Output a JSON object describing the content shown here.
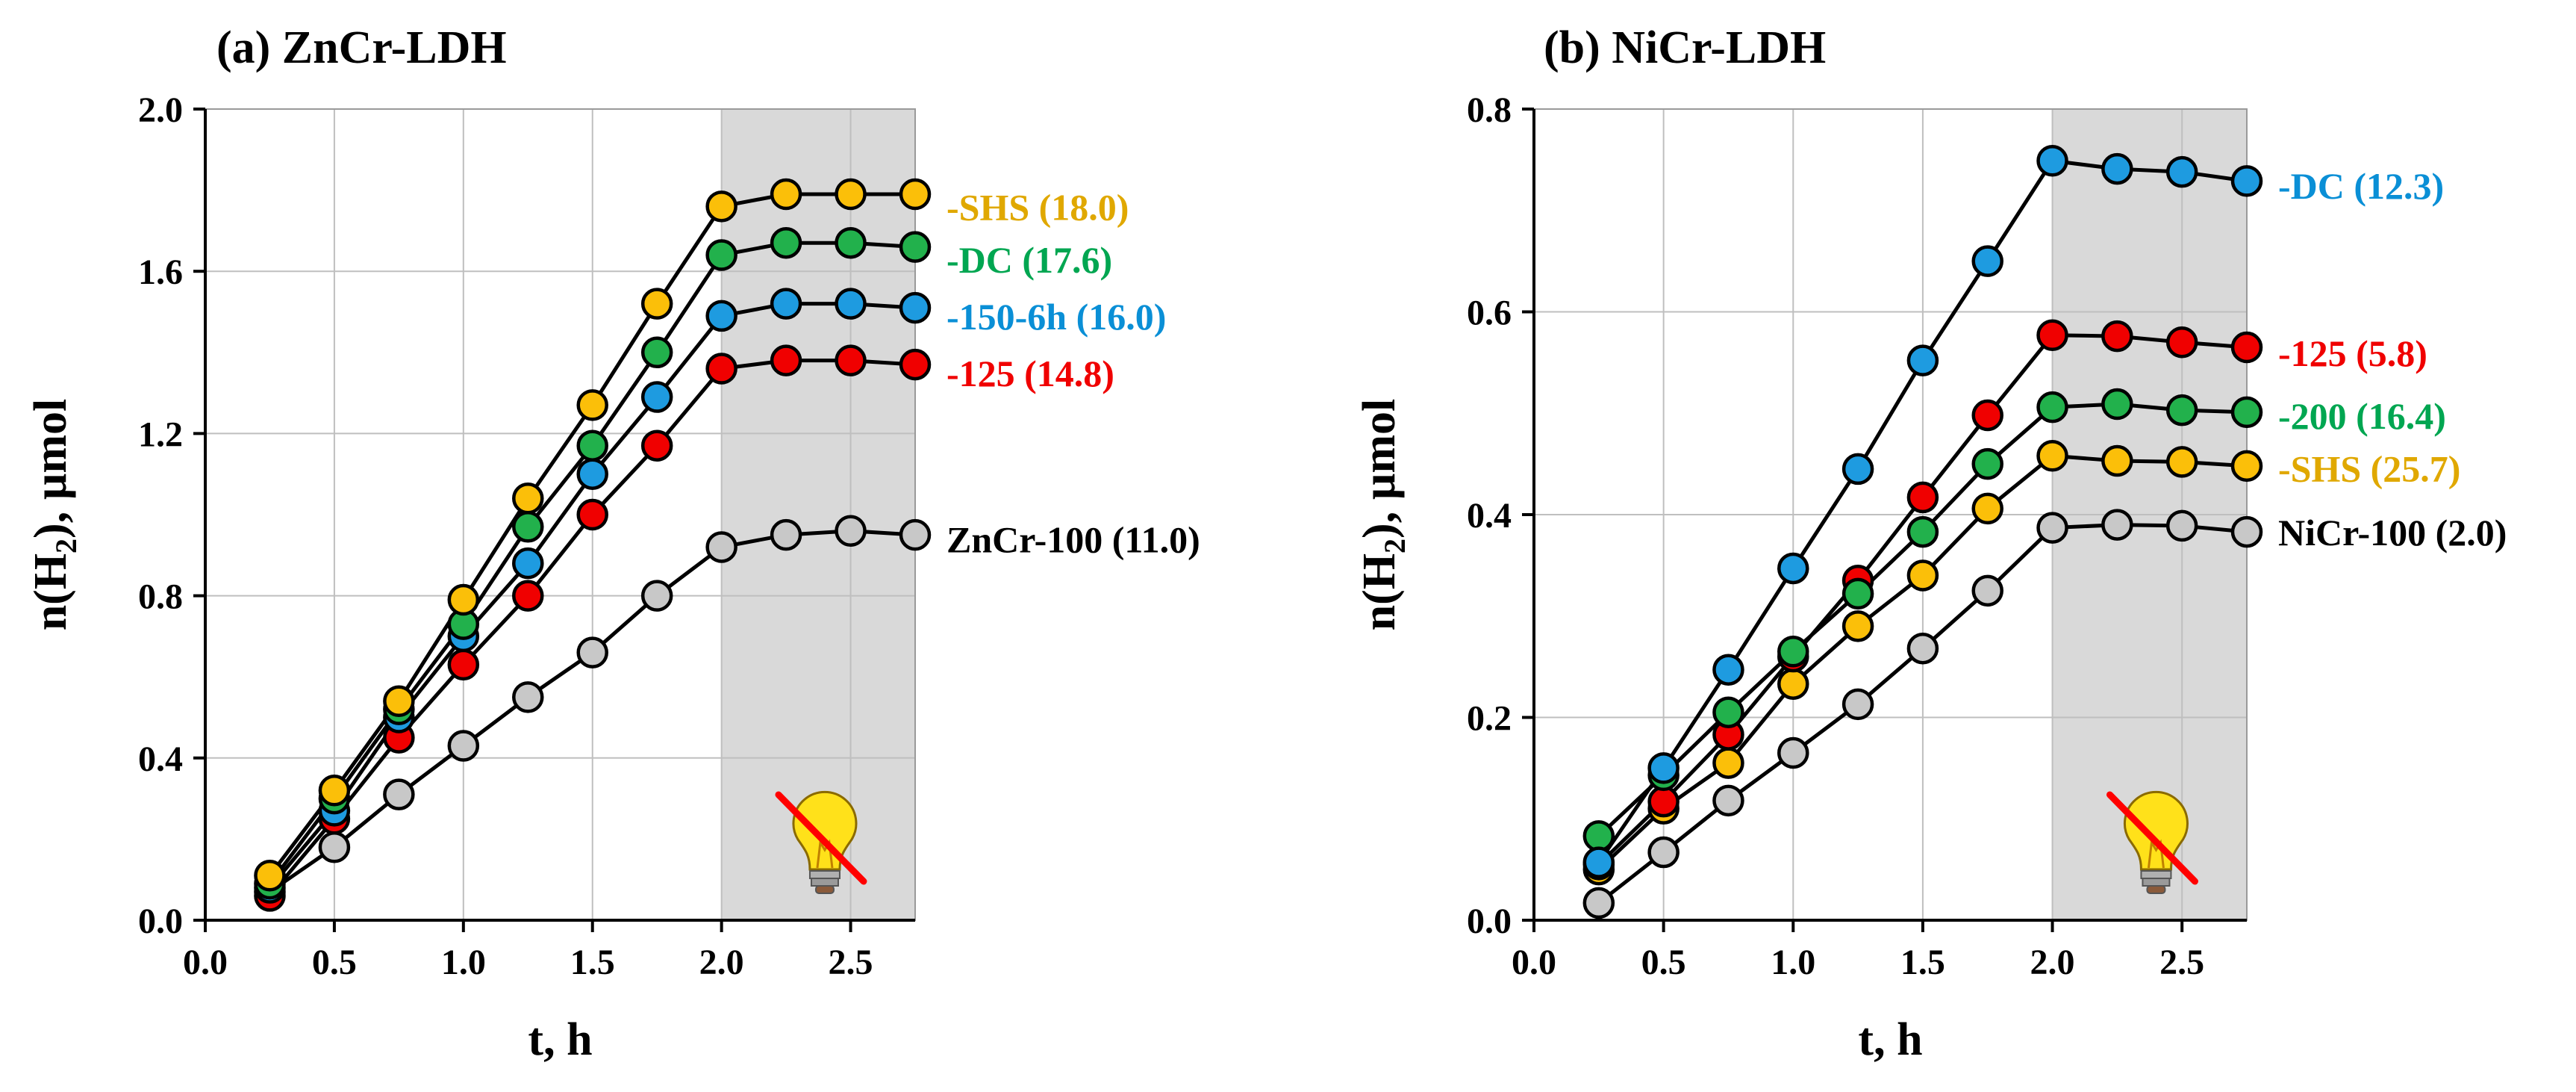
{
  "colors": {
    "SHS": "#FBBF09",
    "DC": "#22B14C",
    "150-6h": "#1E9BE0",
    "125": "#F00000",
    "200": "#22B14C",
    "base": "#C8C8C8",
    "label_SHS": "#E0A800",
    "label_DC_green": "#00A651",
    "label_blue": "#0A8FD6",
    "label_red": "#F00000",
    "label_black": "#000000",
    "dark_shade": "#D9D9D9"
  },
  "chart_data": [
    {
      "type": "line",
      "title": "(a) ZnCr-LDH",
      "xlabel": "t, h",
      "ylabel_main": "n(H",
      "ylabel_sub": "2",
      "ylabel_tail": "), µmol",
      "xlim": [
        0,
        2.75
      ],
      "ylim": [
        0,
        2.0
      ],
      "xticks": [
        0.0,
        0.5,
        1.0,
        1.5,
        2.0,
        2.5
      ],
      "xtick_labels": [
        "0.0",
        "0.5",
        "1.0",
        "1.5",
        "2.0",
        "2.5"
      ],
      "yticks": [
        0.0,
        0.4,
        0.8,
        1.2,
        1.6,
        2.0
      ],
      "ytick_labels": [
        "0.0",
        "0.4",
        "0.8",
        "1.2",
        "1.6",
        "2.0"
      ],
      "dark_region": [
        2.0,
        2.75
      ],
      "grid": true,
      "x": [
        0.25,
        0.5,
        0.75,
        1.0,
        1.25,
        1.5,
        1.75,
        2.0,
        2.25,
        2.5,
        2.75
      ],
      "series": [
        {
          "key": "base",
          "name": "ZnCr-100",
          "label": "ZnCr-100 (11.0)",
          "values": [
            0.07,
            0.18,
            0.31,
            0.43,
            0.55,
            0.66,
            0.8,
            0.92,
            0.95,
            0.96,
            0.95
          ]
        },
        {
          "key": "125",
          "name": "-125",
          "label": "-125 (14.8)",
          "values": [
            0.06,
            0.25,
            0.45,
            0.63,
            0.8,
            1.0,
            1.17,
            1.36,
            1.38,
            1.38,
            1.37
          ]
        },
        {
          "key": "150-6h",
          "name": "-150-6h",
          "label": "-150-6h (16.0)",
          "values": [
            0.08,
            0.27,
            0.5,
            0.7,
            0.88,
            1.1,
            1.29,
            1.49,
            1.52,
            1.52,
            1.51
          ]
        },
        {
          "key": "DC",
          "name": "-DC",
          "label": "-DC (17.6)",
          "values": [
            0.09,
            0.3,
            0.52,
            0.73,
            0.97,
            1.17,
            1.4,
            1.64,
            1.67,
            1.67,
            1.66
          ]
        },
        {
          "key": "SHS",
          "name": "-SHS",
          "label": "-SHS (18.0)",
          "values": [
            0.11,
            0.32,
            0.54,
            0.79,
            1.04,
            1.27,
            1.52,
            1.76,
            1.79,
            1.79,
            1.79
          ]
        }
      ],
      "end_labels": [
        {
          "text": "-SHS (18.0)",
          "color_key": "label_SHS",
          "y": 1.76
        },
        {
          "text": "-DC (17.6)",
          "color_key": "label_DC_green",
          "y": 1.63
        },
        {
          "text": "-150-6h (16.0)",
          "color_key": "label_blue",
          "y": 1.49
        },
        {
          "text": "-125 (14.8)",
          "color_key": "label_red",
          "y": 1.35
        },
        {
          "text": "ZnCr-100 (11.0)",
          "color_key": "label_black",
          "y": 0.94
        }
      ]
    },
    {
      "type": "line",
      "title": "(b) NiCr-LDH",
      "xlabel": "t, h",
      "ylabel_main": "n(H",
      "ylabel_sub": "2",
      "ylabel_tail": "), µmol",
      "xlim": [
        0,
        2.75
      ],
      "ylim": [
        0,
        0.8
      ],
      "xticks": [
        0.0,
        0.5,
        1.0,
        1.5,
        2.0,
        2.5
      ],
      "xtick_labels": [
        "0.0",
        "0.5",
        "1.0",
        "1.5",
        "2.0",
        "2.5"
      ],
      "yticks": [
        0.0,
        0.2,
        0.4,
        0.6,
        0.8
      ],
      "ytick_labels": [
        "0.0",
        "0.2",
        "0.4",
        "0.6",
        "0.8"
      ],
      "dark_region": [
        2.0,
        2.75
      ],
      "grid": true,
      "x": [
        0.25,
        0.5,
        0.75,
        1.0,
        1.25,
        1.5,
        1.75,
        2.0,
        2.25,
        2.5,
        2.75
      ],
      "series": [
        {
          "key": "base",
          "name": "NiCr-100",
          "label": "NiCr-100 (2.0)",
          "values": [
            0.017,
            0.067,
            0.118,
            0.165,
            0.213,
            0.268,
            0.325,
            0.387,
            0.39,
            0.389,
            0.383
          ]
        },
        {
          "key": "SHS",
          "name": "-SHS",
          "label": "-SHS (25.7)",
          "values": [
            0.05,
            0.11,
            0.155,
            0.233,
            0.29,
            0.34,
            0.406,
            0.458,
            0.453,
            0.452,
            0.448
          ]
        },
        {
          "key": "125",
          "name": "-125",
          "label": "-125 (5.8)",
          "values": [
            0.055,
            0.117,
            0.183,
            0.26,
            0.335,
            0.417,
            0.498,
            0.577,
            0.576,
            0.57,
            0.565
          ]
        },
        {
          "key": "200",
          "name": "-200",
          "label": "-200 (16.4)",
          "values": [
            0.083,
            0.143,
            0.205,
            0.265,
            0.322,
            0.383,
            0.45,
            0.506,
            0.509,
            0.503,
            0.501
          ]
        },
        {
          "key": "150-6h",
          "name": "-DC",
          "label": "-DC (12.3)",
          "values": [
            0.057,
            0.15,
            0.247,
            0.347,
            0.445,
            0.552,
            0.65,
            0.749,
            0.741,
            0.738,
            0.729
          ]
        }
      ],
      "end_labels": [
        {
          "text": "-DC (12.3)",
          "color_key": "label_blue",
          "y": 0.725
        },
        {
          "text": "-125 (5.8)",
          "color_key": "label_red",
          "y": 0.56
        },
        {
          "text": "-200 (16.4)",
          "color_key": "label_DC_green",
          "y": 0.498
        },
        {
          "text": "-SHS (25.7)",
          "color_key": "label_SHS",
          "y": 0.446
        },
        {
          "text": "NiCr-100 (2.0)",
          "color_key": "label_black",
          "y": 0.383
        }
      ]
    }
  ]
}
